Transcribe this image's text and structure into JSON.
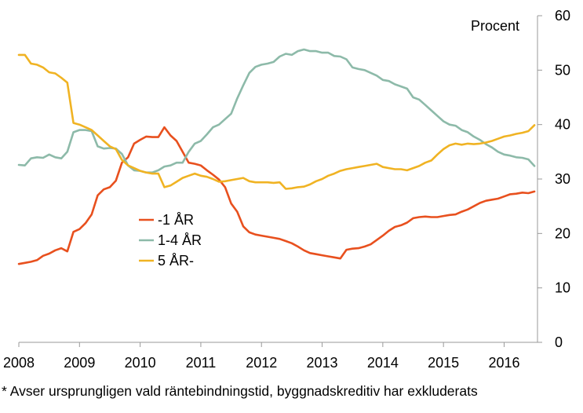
{
  "footnote": "* Avser ursprungligen vald räntebindningstid, byggnadskreditiv har exkluderats",
  "chart_data": {
    "type": "line",
    "unit_label": "Procent",
    "x_ticks": [
      "2008",
      "2009",
      "2010",
      "2011",
      "2012",
      "2013",
      "2014",
      "2015",
      "2016"
    ],
    "xlim": [
      2008.0,
      2016.55
    ],
    "ylim": [
      0,
      60
    ],
    "y_ticks": [
      0,
      10,
      20,
      30,
      40,
      50,
      60
    ],
    "y_axis_side": "right",
    "grid": false,
    "legend_position": "center-left",
    "series": [
      {
        "name": "-1 ÅR",
        "color": "#e8501e",
        "x": [
          2008.0,
          2008.1,
          2008.2,
          2008.3,
          2008.4,
          2008.5,
          2008.6,
          2008.7,
          2008.8,
          2008.9,
          2009.0,
          2009.1,
          2009.2,
          2009.3,
          2009.4,
          2009.5,
          2009.6,
          2009.7,
          2009.8,
          2009.9,
          2010.0,
          2010.1,
          2010.2,
          2010.3,
          2010.4,
          2010.5,
          2010.6,
          2010.7,
          2010.8,
          2010.9,
          2011.0,
          2011.1,
          2011.2,
          2011.3,
          2011.4,
          2011.5,
          2011.6,
          2011.7,
          2011.8,
          2011.9,
          2012.0,
          2012.1,
          2012.2,
          2012.3,
          2012.4,
          2012.5,
          2012.6,
          2012.7,
          2012.8,
          2012.9,
          2013.0,
          2013.1,
          2013.2,
          2013.3,
          2013.4,
          2013.5,
          2013.6,
          2013.7,
          2013.8,
          2013.9,
          2014.0,
          2014.1,
          2014.2,
          2014.3,
          2014.4,
          2014.5,
          2014.6,
          2014.7,
          2014.8,
          2014.9,
          2015.0,
          2015.1,
          2015.2,
          2015.3,
          2015.4,
          2015.5,
          2015.6,
          2015.7,
          2015.8,
          2015.9,
          2016.0,
          2016.1,
          2016.2,
          2016.3,
          2016.4,
          2016.5
        ],
        "y": [
          14.4,
          14.6,
          14.8,
          15.1,
          15.9,
          16.3,
          16.9,
          17.3,
          16.7,
          20.3,
          20.8,
          21.9,
          23.5,
          27.0,
          28.1,
          28.5,
          29.7,
          33.0,
          34.0,
          36.5,
          37.2,
          37.8,
          37.7,
          37.7,
          39.5,
          38.0,
          37.0,
          35.0,
          33.0,
          32.8,
          32.5,
          31.6,
          30.8,
          29.9,
          28.5,
          25.5,
          24.0,
          21.3,
          20.2,
          19.8,
          19.6,
          19.4,
          19.2,
          19.0,
          18.6,
          18.2,
          17.6,
          16.9,
          16.4,
          16.2,
          16.0,
          15.8,
          15.6,
          15.4,
          17.0,
          17.2,
          17.3,
          17.6,
          18.0,
          18.8,
          19.6,
          20.5,
          21.2,
          21.5,
          22.0,
          22.8,
          23.0,
          23.1,
          23.0,
          23.0,
          23.2,
          23.4,
          23.5,
          24.0,
          24.4,
          25.0,
          25.6,
          26.0,
          26.2,
          26.4,
          26.8,
          27.2,
          27.3,
          27.5,
          27.4,
          27.7
        ]
      },
      {
        "name": "1-4 ÅR",
        "color": "#8dbaa9",
        "x": [
          2008.0,
          2008.1,
          2008.2,
          2008.3,
          2008.4,
          2008.5,
          2008.6,
          2008.7,
          2008.8,
          2008.9,
          2009.0,
          2009.1,
          2009.2,
          2009.3,
          2009.4,
          2009.5,
          2009.6,
          2009.7,
          2009.8,
          2009.9,
          2010.0,
          2010.1,
          2010.2,
          2010.3,
          2010.4,
          2010.5,
          2010.6,
          2010.7,
          2010.8,
          2010.9,
          2011.0,
          2011.1,
          2011.2,
          2011.3,
          2011.4,
          2011.5,
          2011.6,
          2011.7,
          2011.8,
          2011.9,
          2012.0,
          2012.1,
          2012.2,
          2012.3,
          2012.4,
          2012.5,
          2012.6,
          2012.7,
          2012.8,
          2012.9,
          2013.0,
          2013.1,
          2013.2,
          2013.3,
          2013.4,
          2013.5,
          2013.6,
          2013.7,
          2013.8,
          2013.9,
          2014.0,
          2014.1,
          2014.2,
          2014.3,
          2014.4,
          2014.5,
          2014.6,
          2014.7,
          2014.8,
          2014.9,
          2015.0,
          2015.1,
          2015.2,
          2015.3,
          2015.4,
          2015.5,
          2015.6,
          2015.7,
          2015.8,
          2015.9,
          2016.0,
          2016.1,
          2016.2,
          2016.3,
          2016.4,
          2016.5
        ],
        "y": [
          32.6,
          32.5,
          33.8,
          34.0,
          33.9,
          34.5,
          34.0,
          33.8,
          35.0,
          38.6,
          39.0,
          39.0,
          38.8,
          36.0,
          35.6,
          35.7,
          35.6,
          34.6,
          32.5,
          31.6,
          31.5,
          31.2,
          31.2,
          31.6,
          32.3,
          32.5,
          33.0,
          33.0,
          35.0,
          36.5,
          37.0,
          38.2,
          39.5,
          40.0,
          41.0,
          42.0,
          44.8,
          47.2,
          49.5,
          50.6,
          51.0,
          51.2,
          51.5,
          52.5,
          53.0,
          52.8,
          53.5,
          53.8,
          53.5,
          53.5,
          53.2,
          53.2,
          52.6,
          52.5,
          52.0,
          50.5,
          50.2,
          50.0,
          49.5,
          49.0,
          48.2,
          48.0,
          47.4,
          47.0,
          46.6,
          45.0,
          44.6,
          43.6,
          42.6,
          41.6,
          40.6,
          40.0,
          39.8,
          39.0,
          38.6,
          37.8,
          37.2,
          36.4,
          35.8,
          35.0,
          34.5,
          34.3,
          34.0,
          33.9,
          33.6,
          32.4
        ]
      },
      {
        "name": "5 ÅR-",
        "color": "#f0b323",
        "x": [
          2008.0,
          2008.1,
          2008.2,
          2008.3,
          2008.4,
          2008.5,
          2008.6,
          2008.7,
          2008.8,
          2008.9,
          2009.0,
          2009.1,
          2009.2,
          2009.3,
          2009.4,
          2009.5,
          2009.6,
          2009.7,
          2009.8,
          2009.9,
          2010.0,
          2010.1,
          2010.2,
          2010.3,
          2010.4,
          2010.5,
          2010.6,
          2010.7,
          2010.8,
          2010.9,
          2011.0,
          2011.1,
          2011.2,
          2011.3,
          2011.4,
          2011.5,
          2011.6,
          2011.7,
          2011.8,
          2011.9,
          2012.0,
          2012.1,
          2012.2,
          2012.3,
          2012.4,
          2012.5,
          2012.6,
          2012.7,
          2012.8,
          2012.9,
          2013.0,
          2013.1,
          2013.2,
          2013.3,
          2013.4,
          2013.5,
          2013.6,
          2013.7,
          2013.8,
          2013.9,
          2014.0,
          2014.1,
          2014.2,
          2014.3,
          2014.4,
          2014.5,
          2014.6,
          2014.7,
          2014.8,
          2014.9,
          2015.0,
          2015.1,
          2015.2,
          2015.3,
          2015.4,
          2015.5,
          2015.6,
          2015.7,
          2015.8,
          2015.9,
          2016.0,
          2016.1,
          2016.2,
          2016.3,
          2016.4,
          2016.5
        ],
        "y": [
          52.8,
          52.8,
          51.2,
          51.0,
          50.5,
          49.6,
          49.4,
          48.6,
          47.7,
          40.3,
          40.0,
          39.5,
          39.0,
          38.0,
          37.0,
          36.0,
          35.5,
          33.5,
          32.5,
          32.0,
          31.5,
          31.2,
          31.0,
          31.0,
          28.5,
          28.8,
          29.5,
          30.2,
          30.6,
          31.0,
          30.6,
          30.4,
          30.0,
          29.5,
          29.6,
          29.8,
          30.0,
          30.2,
          29.6,
          29.4,
          29.4,
          29.4,
          29.3,
          29.4,
          28.2,
          28.3,
          28.5,
          28.6,
          29.0,
          29.6,
          30.0,
          30.6,
          31.0,
          31.5,
          31.8,
          32.0,
          32.2,
          32.4,
          32.6,
          32.8,
          32.2,
          32.0,
          31.8,
          31.8,
          31.6,
          32.0,
          32.4,
          33.0,
          33.4,
          34.5,
          35.5,
          36.2,
          36.5,
          36.3,
          36.5,
          36.4,
          36.5,
          36.7,
          37.0,
          37.4,
          37.8,
          38.0,
          38.3,
          38.5,
          38.8,
          39.9
        ]
      }
    ]
  }
}
